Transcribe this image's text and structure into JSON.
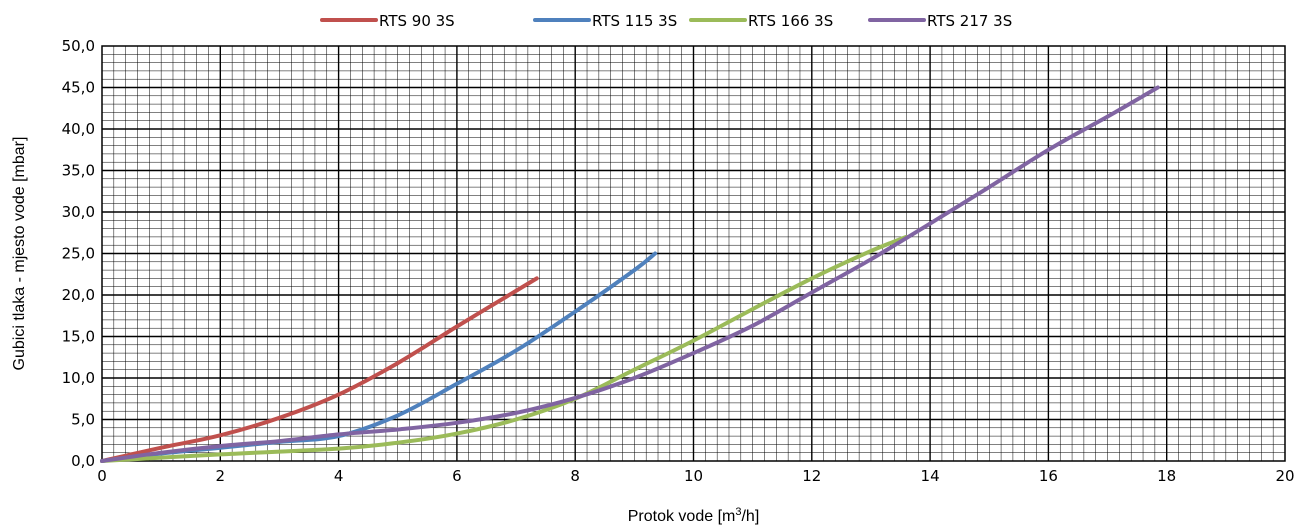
{
  "chart_data": {
    "type": "line",
    "xlabel_main": "Protok vode [m",
    "xlabel_sup": "3",
    "xlabel_tail": "/h]",
    "ylabel": "Gubici tlaka - mjesto vode [mbar]",
    "xlim": [
      0,
      20
    ],
    "ylim": [
      0,
      50
    ],
    "x_ticks": [
      "0",
      "2",
      "4",
      "6",
      "8",
      "10",
      "12",
      "14",
      "16",
      "18",
      "20"
    ],
    "y_ticks": [
      "0,0",
      "5,0",
      "10,0",
      "15,0",
      "20,0",
      "25,0",
      "30,0",
      "35,0",
      "40,0",
      "45,0",
      "50,0"
    ],
    "grid": true,
    "legend_position": "top",
    "series": [
      {
        "name": "RTS 90 3S",
        "color": "#c0504d",
        "points": [
          [
            0,
            0
          ],
          [
            1,
            1.6
          ],
          [
            2,
            3.1
          ],
          [
            3,
            5.2
          ],
          [
            4,
            8.0
          ],
          [
            5,
            11.8
          ],
          [
            6,
            16.2
          ],
          [
            7,
            20.5
          ],
          [
            7.35,
            22.0
          ]
        ]
      },
      {
        "name": "RTS 115 3S",
        "color": "#4f81bd",
        "points": [
          [
            0,
            0
          ],
          [
            1,
            0.9
          ],
          [
            2,
            1.6
          ],
          [
            3,
            2.3
          ],
          [
            4,
            3.0
          ],
          [
            5,
            5.5
          ],
          [
            6,
            9.3
          ],
          [
            7,
            13.3
          ],
          [
            8,
            18.0
          ],
          [
            9,
            23.0
          ],
          [
            9.35,
            25.0
          ]
        ]
      },
      {
        "name": "RTS 166 3S",
        "color": "#9bbb59",
        "points": [
          [
            0,
            0
          ],
          [
            2,
            0.8
          ],
          [
            4,
            1.5
          ],
          [
            5,
            2.2
          ],
          [
            6,
            3.3
          ],
          [
            7,
            5.0
          ],
          [
            8,
            7.5
          ],
          [
            9,
            11.0
          ],
          [
            10,
            14.5
          ],
          [
            11,
            18.3
          ],
          [
            12,
            22.0
          ],
          [
            13,
            25.3
          ],
          [
            13.6,
            27.0
          ]
        ]
      },
      {
        "name": "RTS 217 3S",
        "color": "#8064a2",
        "points": [
          [
            0,
            0
          ],
          [
            1,
            1.0
          ],
          [
            2,
            1.8
          ],
          [
            3,
            2.4
          ],
          [
            4,
            3.2
          ],
          [
            5,
            3.8
          ],
          [
            6,
            4.6
          ],
          [
            7,
            5.8
          ],
          [
            8,
            7.6
          ],
          [
            9,
            10.0
          ],
          [
            10,
            13.0
          ],
          [
            11,
            16.3
          ],
          [
            12,
            20.3
          ],
          [
            13,
            24.3
          ],
          [
            14,
            28.6
          ],
          [
            15,
            33.0
          ],
          [
            16,
            37.5
          ],
          [
            17,
            41.5
          ],
          [
            17.85,
            45.0
          ]
        ]
      }
    ]
  }
}
